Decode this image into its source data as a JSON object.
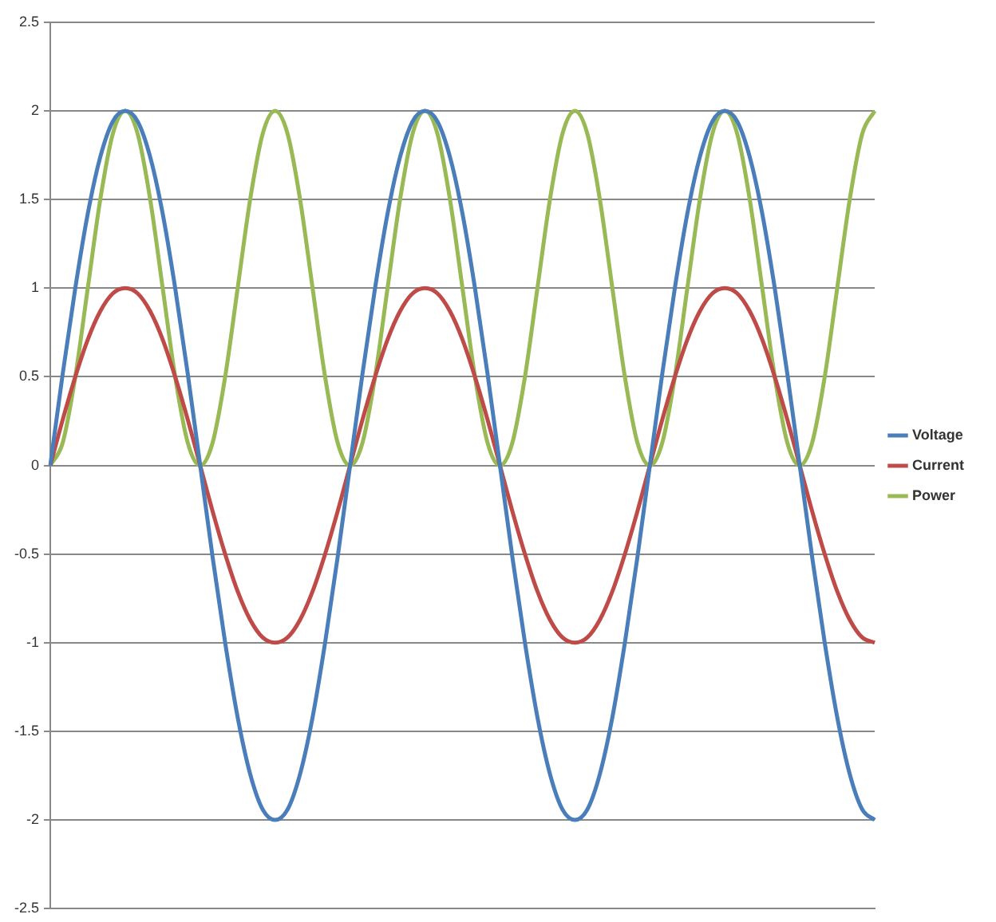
{
  "chart_data": {
    "type": "line",
    "categories": [
      null,
      null,
      null,
      null,
      null,
      null,
      null,
      null,
      null,
      null,
      null,
      null,
      null,
      null,
      null,
      null,
      null,
      null,
      null,
      null,
      null,
      null,
      null,
      null,
      null,
      null,
      null,
      null,
      null,
      null,
      null,
      null,
      null,
      null,
      null,
      null,
      null,
      null,
      null,
      null,
      null,
      null,
      null,
      null,
      null,
      null,
      null,
      null,
      null,
      null,
      null,
      null,
      null,
      null,
      null,
      null,
      null,
      null,
      null,
      null,
      null,
      null,
      null,
      null,
      null,
      null,
      null
    ],
    "series": [
      {
        "name": "Voltage",
        "color": "#4a7ebb",
        "values": [
          0,
          0.52,
          1,
          1.42,
          1.74,
          1.94,
          2,
          1.94,
          1.74,
          1.42,
          1,
          0.52,
          0,
          -0.52,
          -1,
          -1.42,
          -1.74,
          -1.94,
          -2,
          -1.94,
          -1.74,
          -1.42,
          -1,
          -0.52,
          0,
          0.52,
          1,
          1.42,
          1.74,
          1.94,
          2,
          1.94,
          1.74,
          1.42,
          1,
          0.52,
          0,
          -0.52,
          -1,
          -1.42,
          -1.74,
          -1.94,
          -2,
          -1.94,
          -1.74,
          -1.42,
          -1,
          -0.52,
          0,
          0.52,
          1,
          1.42,
          1.74,
          1.94,
          2,
          1.94,
          1.74,
          1.42,
          1,
          0.52,
          0,
          -0.52,
          -1,
          -1.42,
          -1.74,
          -1.94,
          -2
        ]
      },
      {
        "name": "Current",
        "color": "#be4b48",
        "values": [
          0,
          0.26,
          0.5,
          0.71,
          0.87,
          0.97,
          1,
          0.97,
          0.87,
          0.71,
          0.5,
          0.26,
          0,
          -0.26,
          -0.5,
          -0.71,
          -0.87,
          -0.97,
          -1,
          -0.97,
          -0.87,
          -0.71,
          -0.5,
          -0.26,
          0,
          0.26,
          0.5,
          0.71,
          0.87,
          0.97,
          1,
          0.97,
          0.87,
          0.71,
          0.5,
          0.26,
          0,
          -0.26,
          -0.5,
          -0.71,
          -0.87,
          -0.97,
          -1,
          -0.97,
          -0.87,
          -0.71,
          -0.5,
          -0.26,
          0,
          0.26,
          0.5,
          0.71,
          0.87,
          0.97,
          1,
          0.97,
          0.87,
          0.71,
          0.5,
          0.26,
          0,
          -0.26,
          -0.5,
          -0.71,
          -0.87,
          -0.97,
          -1
        ]
      },
      {
        "name": "Power",
        "color": "#98b954",
        "values": [
          0,
          0.13,
          0.5,
          1,
          1.5,
          1.87,
          2,
          1.87,
          1.5,
          1,
          0.5,
          0.13,
          0,
          0.13,
          0.5,
          1,
          1.5,
          1.87,
          2,
          1.87,
          1.5,
          1,
          0.5,
          0.13,
          0,
          0.13,
          0.5,
          1,
          1.5,
          1.87,
          2,
          1.87,
          1.5,
          1,
          0.5,
          0.13,
          0,
          0.13,
          0.5,
          1,
          1.5,
          1.87,
          2,
          1.87,
          1.5,
          1,
          0.5,
          0.13,
          0,
          0.13,
          0.5,
          1,
          1.5,
          1.87,
          2,
          1.87,
          1.5,
          1,
          0.5,
          0.13,
          0,
          0.13,
          0.5,
          1,
          1.5,
          1.87,
          2
        ]
      }
    ],
    "ylim": [
      -2.5,
      2.5
    ],
    "yticks": [
      -2.5,
      -2,
      -1.5,
      -1,
      -0.5,
      0,
      0.5,
      1,
      1.5,
      2,
      2.5
    ],
    "grid": "y",
    "legend": "right",
    "marker": "none",
    "line_style": "solid",
    "tick_labels": "y"
  }
}
